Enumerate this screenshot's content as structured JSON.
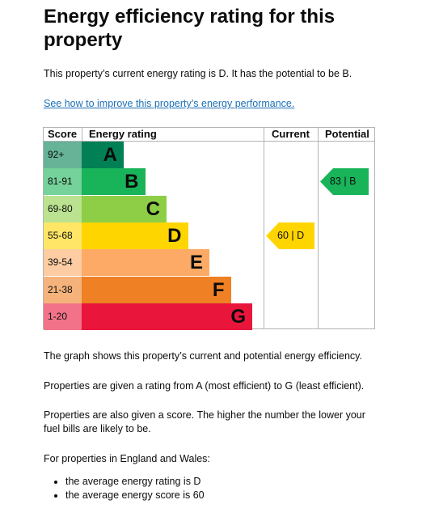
{
  "heading": "Energy efficiency rating for this property",
  "intro": "This property’s current energy rating is D. It has the potential to be B.",
  "link_text": "See how to improve this property’s energy performance.",
  "table": {
    "headers": {
      "score": "Score",
      "rating": "Energy rating",
      "current": "Current",
      "potential": "Potential"
    },
    "bands": [
      {
        "range": "92+",
        "letter": "A",
        "color": "#008054",
        "score_bg": "#66b398"
      },
      {
        "range": "81-91",
        "letter": "B",
        "color": "#19b459",
        "score_bg": "#75d29b"
      },
      {
        "range": "69-80",
        "letter": "C",
        "color": "#8dce46",
        "score_bg": "#bbe290"
      },
      {
        "range": "55-68",
        "letter": "D",
        "color": "#ffd500",
        "score_bg": "#ffe666"
      },
      {
        "range": "39-54",
        "letter": "E",
        "color": "#fcaa65",
        "score_bg": "#fdcca3"
      },
      {
        "range": "21-38",
        "letter": "F",
        "color": "#ef8023",
        "score_bg": "#f5b37b"
      },
      {
        "range": "1-20",
        "letter": "G",
        "color": "#e9153b",
        "score_bg": "#f27389"
      }
    ],
    "current": {
      "label": "60 |  D",
      "value": 60,
      "band": "D",
      "color": "#ffd500"
    },
    "potential": {
      "label": "83 |  B",
      "value": 83,
      "band": "B",
      "color": "#19b459"
    }
  },
  "paragraphs": {
    "p1": "The graph shows this property’s current and potential energy efficiency.",
    "p2": "Properties are given a rating from A (most efficient) to G (least efficient).",
    "p3": "Properties are also given a score. The higher the number the lower your fuel bills are likely to be.",
    "p4": "For properties in England and Wales:"
  },
  "bullets": [
    "the average energy rating is D",
    "the average energy score is 60"
  ]
}
